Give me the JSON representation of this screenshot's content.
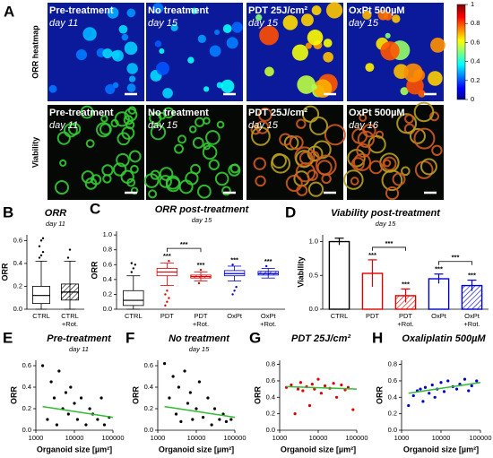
{
  "panel_a": {
    "letter": "A",
    "rows": [
      {
        "label": "ORR heatmap",
        "images": [
          {
            "title": "Pre-treatment",
            "day": "day 11"
          },
          {
            "title": "No treatment",
            "day": "day 15"
          },
          {
            "title": "PDT 25J/cm²",
            "day": "day 15"
          },
          {
            "title": "OxPt 500µM",
            "day": "day 15"
          }
        ]
      },
      {
        "label": "Viability",
        "images": [
          {
            "title": "Pre-treatment",
            "day": "day 11"
          },
          {
            "title": "No treatment",
            "day": "day 15"
          },
          {
            "title": "PDT 25J/cm²",
            "day": "day 15"
          },
          {
            "title": "OxPt 500µM",
            "day": "day 16"
          }
        ]
      }
    ],
    "colorbar": {
      "lim": [
        0,
        1
      ],
      "ticks": [
        0,
        0.2,
        0.4,
        0.6,
        0.8,
        1
      ]
    }
  },
  "chart_data": [
    {
      "type": "box",
      "letter": "B",
      "title": "ORR",
      "subtitle": "day 11",
      "ylabel": "ORR",
      "categories": [
        [
          "CTRL"
        ],
        [
          "CTRL",
          "+Rot."
        ]
      ],
      "colors": [
        "#000000",
        "#000000"
      ],
      "hatched": [
        false,
        true
      ],
      "values": [
        {
          "min": 0,
          "q1": 0.05,
          "median": 0.12,
          "q3": 0.2,
          "max": 0.42,
          "outliers": [
            0.45,
            0.47,
            0.5,
            0.55,
            0.6,
            0.62
          ]
        },
        {
          "min": 0,
          "q1": 0.08,
          "median": 0.15,
          "q3": 0.22,
          "max": 0.42,
          "outliers": [
            0.45,
            0.52
          ]
        }
      ],
      "ylim": [
        0,
        0.65
      ],
      "yticks": [
        {
          "value": 0,
          "label": "0.0"
        },
        0.2,
        0.4,
        0.6
      ]
    },
    {
      "type": "box",
      "letter": "C",
      "title": "ORR post-treatment",
      "subtitle": "day 15",
      "ylabel": "ORR",
      "categories": [
        [
          "CTRL"
        ],
        [
          "PDT"
        ],
        [
          "PDT",
          "+Rot."
        ],
        [
          "OxPt"
        ],
        [
          "OxPt",
          "+Rot."
        ]
      ],
      "colors": [
        "#000000",
        "#e00000",
        "#e00000",
        "#0000cc",
        "#0000cc"
      ],
      "hatched": [
        false,
        false,
        true,
        false,
        true
      ],
      "values": [
        {
          "min": 0,
          "q1": 0.05,
          "median": 0.12,
          "q3": 0.25,
          "max": 0.45,
          "outliers": [
            0.5,
            0.55,
            0.6,
            0.62
          ]
        },
        {
          "min": 0.32,
          "q1": 0.45,
          "median": 0.5,
          "q3": 0.55,
          "max": 0.62,
          "outliers": [
            0.05,
            0.1,
            0.15,
            0.2,
            0.25,
            0.65
          ]
        },
        {
          "min": 0.38,
          "q1": 0.42,
          "median": 0.44,
          "q3": 0.46,
          "max": 0.5,
          "outliers": [
            0.35,
            0.53
          ]
        },
        {
          "min": 0.38,
          "q1": 0.45,
          "median": 0.48,
          "q3": 0.52,
          "max": 0.58,
          "outliers": [
            0.2,
            0.25,
            0.3,
            0.6
          ]
        },
        {
          "min": 0.42,
          "q1": 0.46,
          "median": 0.48,
          "q3": 0.51,
          "max": 0.55,
          "outliers": [
            0.58
          ]
        }
      ],
      "significance": [
        null,
        "***",
        "***",
        "***",
        "***"
      ],
      "brackets": [
        {
          "between": [
            1,
            2
          ],
          "label": "***"
        }
      ],
      "ylim": [
        0,
        1.05
      ],
      "yticks": [
        {
          "value": 0,
          "label": "0.0"
        },
        0.2,
        0.4,
        0.6,
        0.8,
        {
          "value": 1,
          "label": "1.0"
        }
      ]
    },
    {
      "type": "bar",
      "letter": "D",
      "title": "Viability post-treatment",
      "subtitle": "day 15",
      "ylabel": "Viability",
      "categories": [
        [
          "CTRL"
        ],
        [
          "PDT"
        ],
        [
          "PDT",
          "+Rot."
        ],
        [
          "OxPt"
        ],
        [
          "OxPt",
          "+Rot."
        ]
      ],
      "colors": [
        "#000000",
        "#e00000",
        "#e00000",
        "#0000cc",
        "#0000cc"
      ],
      "hatched": [
        false,
        false,
        true,
        false,
        true
      ],
      "values": [
        1.0,
        0.53,
        0.2,
        0.45,
        0.35
      ],
      "errors": [
        0.05,
        0.2,
        0.1,
        0.07,
        0.08
      ],
      "significance": [
        null,
        "***",
        "***",
        "***",
        "***"
      ],
      "brackets": [
        {
          "between": [
            1,
            2
          ],
          "label": "***"
        },
        {
          "between": [
            3,
            4
          ],
          "label": "***"
        }
      ],
      "ylim": [
        0,
        1.1
      ],
      "yticks": [
        {
          "value": 0,
          "label": "0.0"
        },
        0.5,
        {
          "value": 1,
          "label": "1.0"
        }
      ]
    },
    {
      "type": "scatter",
      "letter": "E",
      "title": "Pre-treatment",
      "subtitle": "day 11",
      "ylabel": "ORR",
      "xlabel": "Organoid size [µm²]",
      "color": "#000000",
      "trend_color": "#33bb33",
      "xscale": "log",
      "x": [
        1500,
        2000,
        2500,
        3000,
        3500,
        4000,
        5000,
        6000,
        7000,
        8000,
        10000,
        12000,
        15000,
        20000,
        25000,
        30000,
        40000,
        50000,
        60000,
        80000
      ],
      "values": [
        0.6,
        0.1,
        0.45,
        0.3,
        0.05,
        0.55,
        0.2,
        0.35,
        0.15,
        0.4,
        0.25,
        0.1,
        0.3,
        0.05,
        0.2,
        0.15,
        0.1,
        0.3,
        0.05,
        0.12
      ],
      "trend": {
        "x": [
          1500,
          100000
        ],
        "y": [
          0.22,
          0.12
        ]
      },
      "xlim": [
        1000,
        100000
      ],
      "xticks": [
        1000,
        10000,
        100000
      ],
      "ylim": [
        0,
        0.65
      ],
      "yticks": [
        {
          "value": 0,
          "label": "0.0"
        },
        0.2,
        0.4,
        0.6
      ]
    },
    {
      "type": "scatter",
      "letter": "F",
      "title": "No treatment",
      "subtitle": "day 15",
      "ylabel": "ORR",
      "xlabel": "Organoid size [µm²]",
      "color": "#000000",
      "trend_color": "#33bb33",
      "xscale": "log",
      "x": [
        1500,
        2000,
        2500,
        3000,
        3500,
        4000,
        5000,
        6000,
        7000,
        8000,
        10000,
        12000,
        15000,
        20000,
        25000,
        30000,
        40000,
        50000,
        60000,
        80000
      ],
      "values": [
        0.62,
        0.3,
        0.5,
        0.15,
        0.4,
        0.08,
        0.55,
        0.25,
        0.35,
        0.1,
        0.2,
        0.45,
        0.12,
        0.3,
        0.05,
        0.2,
        0.1,
        0.15,
        0.08,
        0.1
      ],
      "trend": {
        "x": [
          1500,
          100000
        ],
        "y": [
          0.22,
          0.12
        ]
      },
      "xlim": [
        1000,
        100000
      ],
      "xticks": [
        1000,
        10000,
        100000
      ],
      "ylim": [
        0,
        0.65
      ],
      "yticks": [
        {
          "value": 0,
          "label": "0.0"
        },
        0.2,
        0.4,
        0.6
      ]
    },
    {
      "type": "scatter",
      "letter": "G",
      "title": "PDT 25J/cm²",
      "ylabel": "ORR",
      "xlabel": "Organoid size [µm²]",
      "color": "#e00000",
      "trend_color": "#33bb33",
      "xscale": "log",
      "x": [
        1500,
        2000,
        2500,
        3000,
        3500,
        4000,
        5000,
        6000,
        7000,
        8000,
        10000,
        12000,
        15000,
        20000,
        25000,
        30000,
        40000,
        50000,
        60000,
        80000
      ],
      "values": [
        0.52,
        0.55,
        0.2,
        0.5,
        0.58,
        0.48,
        0.53,
        0.3,
        0.56,
        0.5,
        0.62,
        0.45,
        0.54,
        0.51,
        0.57,
        0.4,
        0.55,
        0.49,
        0.52,
        0.25
      ],
      "trend": {
        "x": [
          1500,
          100000
        ],
        "y": [
          0.53,
          0.5
        ]
      },
      "xlim": [
        1000,
        100000
      ],
      "xticks": [
        1000,
        10000,
        100000
      ],
      "ylim": [
        0,
        0.85
      ],
      "yticks": [
        {
          "value": 0,
          "label": "0.0"
        },
        0.2,
        0.4,
        0.6,
        0.8
      ]
    },
    {
      "type": "scatter",
      "letter": "H",
      "title": "Oxaliplatin 500µM",
      "ylabel": "ORR",
      "xlabel": "Organoid size [µm²]",
      "color": "#0000cc",
      "trend_color": "#33bb33",
      "xscale": "log",
      "x": [
        1500,
        2000,
        2500,
        3000,
        3500,
        4000,
        5000,
        6000,
        7000,
        8000,
        10000,
        12000,
        15000,
        20000,
        25000,
        30000,
        40000,
        50000,
        60000,
        80000
      ],
      "values": [
        0.3,
        0.42,
        0.48,
        0.5,
        0.35,
        0.52,
        0.45,
        0.55,
        0.4,
        0.5,
        0.58,
        0.47,
        0.6,
        0.53,
        0.5,
        0.56,
        0.62,
        0.48,
        0.54,
        0.6
      ],
      "trend": {
        "x": [
          1500,
          100000
        ],
        "y": [
          0.45,
          0.58
        ]
      },
      "xlim": [
        1000,
        100000
      ],
      "xticks": [
        1000,
        10000,
        100000
      ],
      "ylim": [
        0,
        0.85
      ],
      "yticks": [
        {
          "value": 0,
          "label": "0.0"
        },
        0.2,
        0.4,
        0.6,
        0.8
      ]
    }
  ]
}
